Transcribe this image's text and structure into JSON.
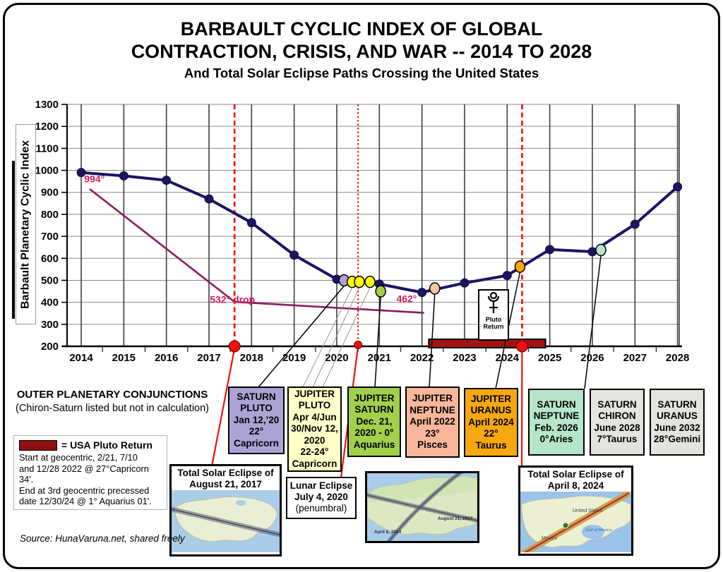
{
  "figure": {
    "title_line1": "BARBAULT CYCLIC INDEX OF GLOBAL",
    "title_line2": "CONTRACTION, CRISIS, AND WAR -- 2014 TO 2028",
    "subtitle": "And Total Solar Eclipse Paths Crossing the United States",
    "source": "Source:  HunaVaruna.net, shared freely"
  },
  "chart_data": {
    "type": "line",
    "title": "Barbault Cyclic Index 2014 to 2028",
    "ylabel": "Barbault Planetary Cyclic Index",
    "xlabel": "",
    "ylim": [
      200,
      1300
    ],
    "yticks": [
      200,
      300,
      400,
      500,
      600,
      700,
      800,
      900,
      1000,
      1100,
      1200,
      1300
    ],
    "x": [
      2014,
      2015,
      2016,
      2017,
      2018,
      2019,
      2020,
      2021,
      2022,
      2023,
      2024,
      2025,
      2026,
      2027,
      2028
    ],
    "series": [
      {
        "name": "Barbault Planetary Cyclic Index",
        "values": [
          990,
          975,
          955,
          870,
          762,
          615,
          505,
          483,
          445,
          488,
          522,
          640,
          630,
          755,
          925
        ]
      }
    ],
    "grid": true,
    "colors": {
      "series": "#1b1464",
      "drop_line": "#8b1d5f",
      "annotation": "#d81b60",
      "eclipse": "#ee1111",
      "bar": "#a31111"
    },
    "conjunction_points": [
      {
        "name": "saturn-pluto",
        "year": 2020.17,
        "value": 500,
        "color": "#aca3d5"
      },
      {
        "name": "jupiter-pluto-1",
        "year": 2020.36,
        "value": 493,
        "color": "#ffff00"
      },
      {
        "name": "jupiter-pluto-2",
        "year": 2020.53,
        "value": 493,
        "color": "#ffff00"
      },
      {
        "name": "jupiter-pluto-3",
        "year": 2020.78,
        "value": 493,
        "color": "#ffff00"
      },
      {
        "name": "jupiter-saturn",
        "year": 2021.03,
        "value": 450,
        "color": "#a2d04b"
      },
      {
        "name": "jupiter-neptune",
        "year": 2022.3,
        "value": 463,
        "color": "#f8c5a0"
      },
      {
        "name": "jupiter-uranus",
        "year": 2024.3,
        "value": 562,
        "color": "#f6a80e"
      },
      {
        "name": "saturn-neptune",
        "year": 2026.2,
        "value": 638,
        "color": "#b5e6ca"
      }
    ],
    "eclipse_lines": [
      {
        "name": "solar-2017",
        "year": 2017.6,
        "style": "dashed",
        "dot": "large"
      },
      {
        "name": "lunar-2020",
        "year": 2020.5,
        "style": "dotted",
        "dot": "small"
      },
      {
        "name": "solar-2024",
        "year": 2024.35,
        "style": "dashed",
        "dot": "large"
      }
    ],
    "pluto_return_bar": {
      "start_year": 2022.16,
      "end_year": 2024.9,
      "color": "#a31111"
    },
    "drop_line": {
      "points_year_value": [
        [
          2014.2,
          915
        ],
        [
          2017.6,
          402
        ],
        [
          2022.05,
          352
        ]
      ],
      "labels": [
        {
          "text": "994°",
          "year": 2014.07,
          "value": 945
        },
        {
          "text": "532° drop",
          "year": 2017.02,
          "value": 398
        },
        {
          "text": "462°",
          "year": 2021.4,
          "value": 400
        }
      ]
    }
  },
  "pluto_return_marker": {
    "line1": "Pluto",
    "line2": "Return"
  },
  "conjunctions": {
    "heading": "OUTER PLANETARY CONJUNCTIONS",
    "subheading": "(Chiron-Saturn listed but not in calculation)",
    "boxes": [
      {
        "id": "saturn-pluto",
        "color": "#aca3d5",
        "lines": [
          "SATURN",
          "PLUTO",
          "Jan 12,’20",
          "22°",
          "Capricorn"
        ]
      },
      {
        "id": "jupiter-pluto",
        "color": "#ffffc8",
        "lines": [
          "JUPITER",
          "PLUTO",
          "Apr 4/Jun",
          "30/Nov 12,",
          "2020",
          "22-24°",
          "Capricorn"
        ]
      },
      {
        "id": "jupiter-saturn",
        "color": "#a2d04b",
        "lines": [
          "JUPITER",
          "SATURN",
          "Dec. 21,",
          "2020 - 0°",
          "Aquarius"
        ]
      },
      {
        "id": "jupiter-neptune",
        "color": "#f8b69a",
        "lines": [
          "JUPITER",
          "NEPTUNE",
          "April 2022",
          "23°",
          "Pisces"
        ]
      },
      {
        "id": "jupiter-uranus",
        "color": "#f6a80e",
        "lines": [
          "JUPITER",
          "URANUS",
          "April 2024",
          "22°",
          "Taurus"
        ]
      },
      {
        "id": "saturn-neptune",
        "color": "#b5e6ca",
        "lines": [
          "SATURN",
          "NEPTUNE",
          "Feb. 2026",
          "0°Aries"
        ]
      },
      {
        "id": "saturn-chiron",
        "color": "#e3e3df",
        "lines": [
          "SATURN",
          "CHIRON",
          "June 2028",
          "7°Taurus"
        ]
      },
      {
        "id": "saturn-uranus",
        "color": "#e3e3df",
        "lines": [
          "SATURN",
          "URANUS",
          "June 2032",
          "28°Gemini"
        ]
      }
    ]
  },
  "legend": {
    "swatch_color": "#8f1010",
    "swatch_label": "= USA Pluto Return",
    "body_lines": [
      "Start at geocentric, 2/21, 7/10",
      "and 12/28 2022 @ 27°Capricorn",
      "34'.",
      "End at 3rd geocentric precessed",
      "date 12/30/24 @ 1° Aquarius 01'."
    ]
  },
  "eclipse_maps": [
    {
      "name": "solar-eclipse-2017-map",
      "title_line1": "Total Solar Eclipse of",
      "title_line2": "August 21, 2017"
    },
    {
      "name": "crossing-paths-map",
      "label_april": "April 8, 2024",
      "label_august": "August 21, 2017"
    },
    {
      "name": "solar-eclipse-2024-map",
      "title_line1": "Total Solar Eclipse of",
      "title_line2": "April 8, 2024",
      "label_us": "United States",
      "label_mexico": "Mexico",
      "label_gulf": "Gulf of Mexico"
    }
  ],
  "lunar_eclipse_box": {
    "lines": [
      "Lunar Eclipse",
      "July 4, 2020",
      "(penumbral)"
    ]
  }
}
